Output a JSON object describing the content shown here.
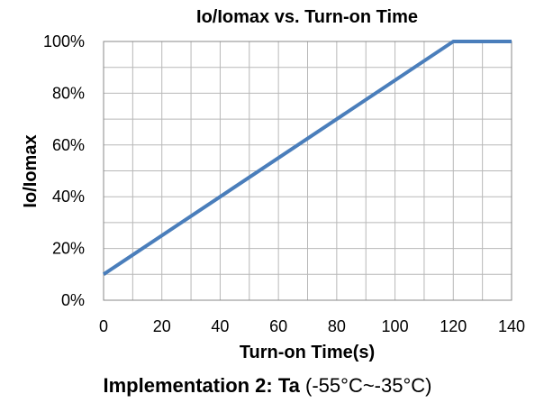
{
  "chart_data": {
    "type": "line",
    "title": "Io/Iomax vs. Turn-on Time",
    "xlabel": "Turn-on Time(s)",
    "ylabel": "Io/Iomax",
    "xlim": [
      0,
      140
    ],
    "ylim": [
      0,
      100
    ],
    "x_ticks": [
      "0",
      "20",
      "40",
      "60",
      "80",
      "100",
      "120",
      "140"
    ],
    "y_ticks": [
      "0%",
      "20%",
      "40%",
      "60%",
      "80%",
      "100%"
    ],
    "grid": true,
    "line_color": "#4a7ebb",
    "series": [
      {
        "x": [
          0,
          120,
          140
        ],
        "y": [
          10,
          100,
          100
        ]
      }
    ]
  },
  "caption": {
    "bold_part": "Implementation 2: Ta",
    "normal_part": " (-55°C~-35°C)"
  }
}
